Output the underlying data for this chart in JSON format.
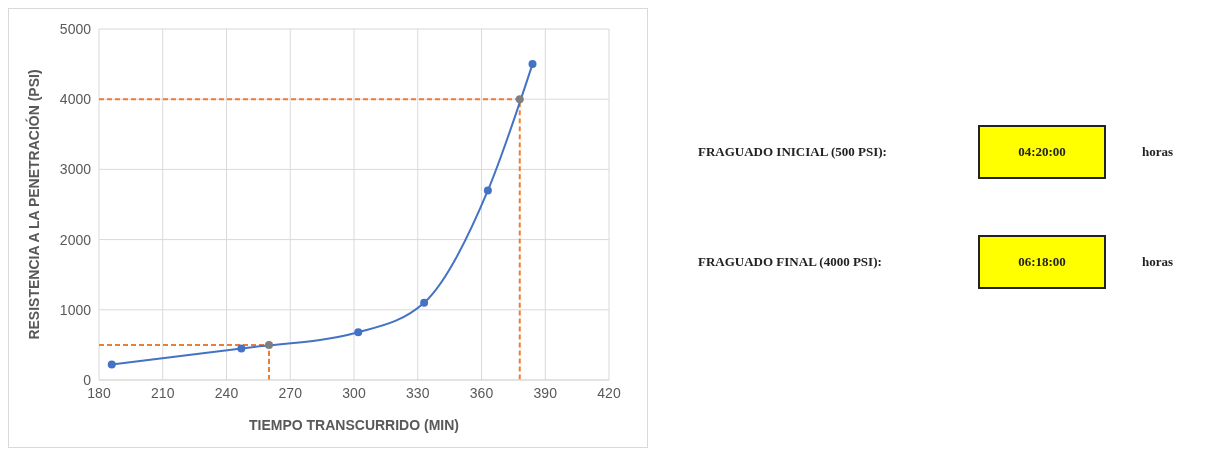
{
  "chart_data": [
    {
      "type": "line",
      "xlabel": "TIEMPO TRANSCURRIDO (MIN)",
      "ylabel": "RESISTENCIA A LA PENETRACIÓN (PSI)",
      "xlim": [
        180,
        420
      ],
      "xticks": [
        180,
        210,
        240,
        270,
        300,
        330,
        360,
        390,
        420
      ],
      "ylim": [
        0,
        5000
      ],
      "yticks": [
        0,
        1000,
        2000,
        3000,
        4000,
        5000
      ],
      "grid": true,
      "series": [
        {
          "type": "line",
          "color": "#ed7d31",
          "line_style": "dashed",
          "marker": "none",
          "x": [
            180,
            260,
            260
          ],
          "values": [
            500,
            500,
            0
          ]
        },
        {
          "type": "line",
          "color": "#ed7d31",
          "line_style": "dashed",
          "marker": "none",
          "x": [
            180,
            378,
            378
          ],
          "values": [
            4000,
            4000,
            0
          ]
        },
        {
          "type": "line",
          "color": "#4472c4",
          "line_style": "solid",
          "marker": "circle",
          "x": [
            186,
            247,
            260,
            302,
            333,
            363,
            378,
            384
          ],
          "values": [
            220,
            450,
            null,
            680,
            1100,
            2700,
            null,
            4500
          ]
        },
        {
          "type": "scatter",
          "color": "#7f7f7f",
          "marker": "circle",
          "x": [
            260,
            378
          ],
          "values": [
            500,
            4000
          ]
        }
      ]
    },
    {
      "type": "other",
      "annotations": [
        "FRAGUADO INICIAL (500 PSI):",
        "04:20:00",
        "horas",
        "FRAGUADO FINAL (4000 PSI):",
        "06:18:00",
        "horas"
      ]
    }
  ]
}
